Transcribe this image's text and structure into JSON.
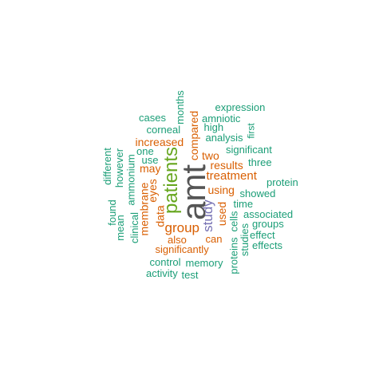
{
  "colors": {
    "teal": "#1b9e77",
    "orange": "#d95f02",
    "purple": "#7570b3",
    "green": "#66a61e",
    "gray": "#555555"
  },
  "words": [
    {
      "text": "amt",
      "color": "gray"
    },
    {
      "text": "patients",
      "color": "green"
    },
    {
      "text": "group",
      "color": "orange"
    },
    {
      "text": "study",
      "color": "purple"
    },
    {
      "text": "treatment",
      "color": "orange"
    },
    {
      "text": "increased",
      "color": "orange"
    },
    {
      "text": "using",
      "color": "orange"
    },
    {
      "text": "results",
      "color": "orange"
    },
    {
      "text": "compared",
      "color": "orange"
    },
    {
      "text": "two",
      "color": "orange"
    },
    {
      "text": "may",
      "color": "orange"
    },
    {
      "text": "significantly",
      "color": "orange"
    },
    {
      "text": "membrane",
      "color": "orange"
    },
    {
      "text": "used",
      "color": "orange"
    },
    {
      "text": "eyes",
      "color": "orange"
    },
    {
      "text": "data",
      "color": "orange"
    },
    {
      "text": "also",
      "color": "orange"
    },
    {
      "text": "can",
      "color": "orange"
    },
    {
      "text": "expression",
      "color": "teal"
    },
    {
      "text": "amniotic",
      "color": "teal"
    },
    {
      "text": "cases",
      "color": "teal"
    },
    {
      "text": "months",
      "color": "teal"
    },
    {
      "text": "high",
      "color": "teal"
    },
    {
      "text": "corneal",
      "color": "teal"
    },
    {
      "text": "first",
      "color": "teal"
    },
    {
      "text": "analysis",
      "color": "teal"
    },
    {
      "text": "significant",
      "color": "teal"
    },
    {
      "text": "one",
      "color": "teal"
    },
    {
      "text": "use",
      "color": "teal"
    },
    {
      "text": "three",
      "color": "teal"
    },
    {
      "text": "different",
      "color": "teal"
    },
    {
      "text": "however",
      "color": "teal"
    },
    {
      "text": "ammonium",
      "color": "teal"
    },
    {
      "text": "protein",
      "color": "teal"
    },
    {
      "text": "showed",
      "color": "teal"
    },
    {
      "text": "time",
      "color": "teal"
    },
    {
      "text": "found",
      "color": "teal"
    },
    {
      "text": "clinical",
      "color": "teal"
    },
    {
      "text": "mean",
      "color": "teal"
    },
    {
      "text": "cells",
      "color": "teal"
    },
    {
      "text": "associated",
      "color": "teal"
    },
    {
      "text": "groups",
      "color": "teal"
    },
    {
      "text": "effect",
      "color": "teal"
    },
    {
      "text": "studies",
      "color": "teal"
    },
    {
      "text": "effects",
      "color": "teal"
    },
    {
      "text": "proteins",
      "color": "teal"
    },
    {
      "text": "control",
      "color": "teal"
    },
    {
      "text": "memory",
      "color": "teal"
    },
    {
      "text": "activity",
      "color": "teal"
    },
    {
      "text": "test",
      "color": "teal"
    }
  ]
}
